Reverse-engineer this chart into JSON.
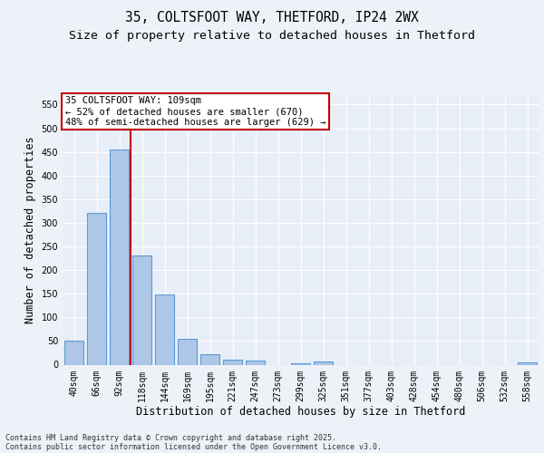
{
  "title1": "35, COLTSFOOT WAY, THETFORD, IP24 2WX",
  "title2": "Size of property relative to detached houses in Thetford",
  "xlabel": "Distribution of detached houses by size in Thetford",
  "ylabel": "Number of detached properties",
  "categories": [
    "40sqm",
    "66sqm",
    "92sqm",
    "118sqm",
    "144sqm",
    "169sqm",
    "195sqm",
    "221sqm",
    "247sqm",
    "273sqm",
    "299sqm",
    "325sqm",
    "351sqm",
    "377sqm",
    "403sqm",
    "428sqm",
    "454sqm",
    "480sqm",
    "506sqm",
    "532sqm",
    "558sqm"
  ],
  "values": [
    50,
    320,
    455,
    230,
    148,
    55,
    22,
    10,
    9,
    0,
    2,
    6,
    0,
    0,
    0,
    0,
    0,
    0,
    0,
    0,
    4
  ],
  "bar_color": "#aec6e8",
  "bar_edge_color": "#5b9bd5",
  "bar_edge_width": 0.8,
  "vline_color": "#c00000",
  "annotation_title": "35 COLTSFOOT WAY: 109sqm",
  "annotation_line2": "← 52% of detached houses are smaller (670)",
  "annotation_line3": "48% of semi-detached houses are larger (629) →",
  "annotation_box_color": "#ffffff",
  "annotation_box_edge": "#c00000",
  "ylim": [
    0,
    570
  ],
  "yticks": [
    0,
    50,
    100,
    150,
    200,
    250,
    300,
    350,
    400,
    450,
    500,
    550
  ],
  "footer1": "Contains HM Land Registry data © Crown copyright and database right 2025.",
  "footer2": "Contains public sector information licensed under the Open Government Licence v3.0.",
  "bg_color": "#edf2f9",
  "plot_bg_color": "#e8eef8",
  "grid_color": "#ffffff",
  "title_fontsize": 10.5,
  "subtitle_fontsize": 9.5,
  "tick_fontsize": 7,
  "label_fontsize": 8.5,
  "footer_fontsize": 6,
  "annot_fontsize": 7.5
}
